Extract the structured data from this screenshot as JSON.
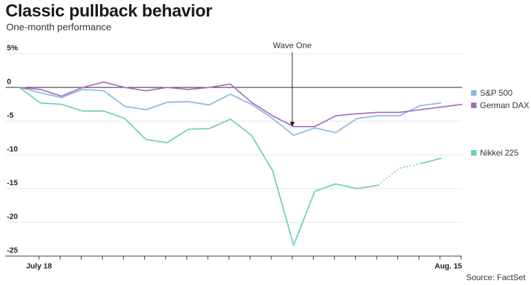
{
  "header": {
    "title": "Classic pullback behavior",
    "subtitle": "One-month performance"
  },
  "source": "Source: FactSet",
  "chart_data": {
    "type": "line",
    "title": "Classic pullback behavior",
    "subtitle": "One-month performance",
    "ylim": [
      -25,
      5
    ],
    "y_ticks": [
      {
        "value": 5,
        "label": "5%"
      },
      {
        "value": 0,
        "label": "0"
      },
      {
        "value": -5,
        "label": "-5"
      },
      {
        "value": -10,
        "label": "-10"
      },
      {
        "value": -15,
        "label": "-15"
      },
      {
        "value": -20,
        "label": "-20"
      },
      {
        "value": -25,
        "label": "-25"
      }
    ],
    "x_labels": [
      {
        "index": 1,
        "label": "July 18"
      },
      {
        "index": 21,
        "label": "Aug. 15"
      }
    ],
    "grid": true,
    "legend": "right",
    "annotation": {
      "label": "Wave One",
      "index": 13
    },
    "series": [
      {
        "name": "S&P 500",
        "color": "#8ab8dd",
        "values": [
          0,
          -0.8,
          -1.5,
          -0.3,
          -0.5,
          -2.8,
          -3.3,
          -2.2,
          -2.1,
          -2.6,
          -1.0,
          -2.5,
          -4.6,
          -7.1,
          -6.0,
          -6.7,
          -4.6,
          -4.2,
          -4.2,
          -2.7,
          -2.3,
          null
        ]
      },
      {
        "name": "German DAX",
        "color": "#a66cc1",
        "values": [
          0,
          -0.3,
          -1.3,
          0.0,
          0.8,
          0.0,
          -0.5,
          0.0,
          -0.3,
          0.0,
          0.5,
          -2.2,
          -4.2,
          -5.8,
          -5.8,
          -4.2,
          -3.9,
          -3.7,
          -3.7,
          -3.3,
          -2.9,
          -2.5
        ]
      },
      {
        "name": "Nikkei 225",
        "color": "#6ecfb3",
        "dotted_from_index": 17,
        "values": [
          0,
          -2.3,
          -2.5,
          -3.5,
          -3.5,
          -4.6,
          -7.7,
          -8.2,
          -6.2,
          -6.1,
          -4.7,
          -7.1,
          -12.3,
          -23.4,
          -15.4,
          -14.3,
          -15.0,
          -14.5,
          -12.0,
          -11.3,
          -10.5,
          null
        ]
      }
    ]
  }
}
